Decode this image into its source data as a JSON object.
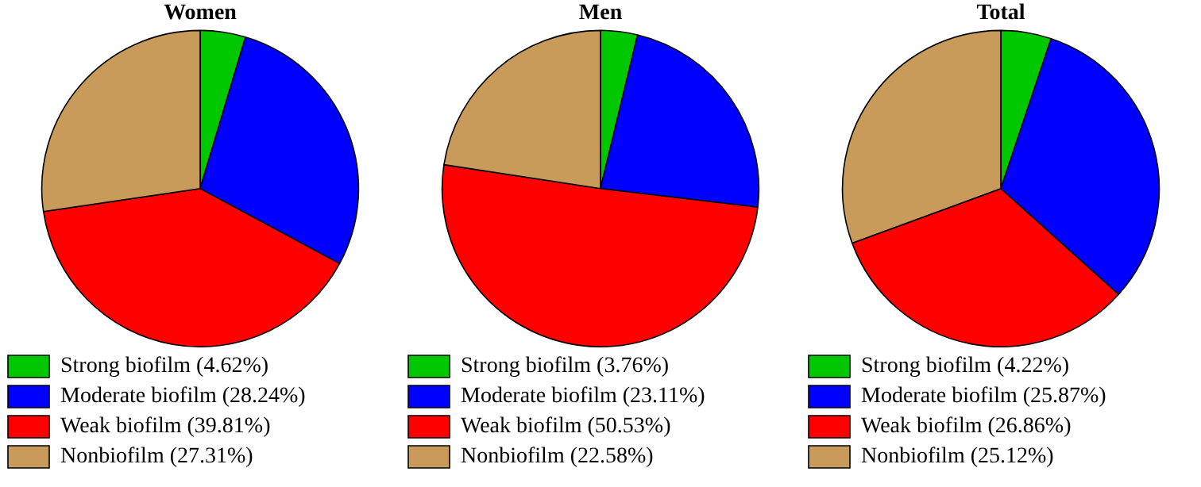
{
  "chart_data": [
    {
      "type": "pie",
      "title": "Women",
      "categories": [
        "Strong biofilm (4.62%)",
        "Moderate biofilm (28.24%)",
        "Weak biofilm (39.81%)",
        "Nonbiofilm (27.31%)"
      ],
      "values": [
        4.62,
        28.24,
        39.81,
        27.31
      ],
      "colors": [
        "#00c800",
        "#0000ff",
        "#ff0000",
        "#c89b5a"
      ],
      "legend": "bottom"
    },
    {
      "type": "pie",
      "title": "Men",
      "categories": [
        "Strong biofilm (3.76%)",
        "Moderate biofilm (23.11%)",
        "Weak biofilm (50.53%)",
        "Nonbiofilm (22.58%)"
      ],
      "values": [
        3.76,
        23.11,
        50.53,
        22.58
      ],
      "colors": [
        "#00c800",
        "#0000ff",
        "#ff0000",
        "#c89b5a"
      ],
      "legend": "bottom"
    },
    {
      "type": "pie",
      "title": "Total",
      "categories": [
        "Strong biofilm (4.22%)",
        "Moderate biofilm (25.87%)",
        "Weak biofilm (26.86%)",
        "Nonbiofilm (25.12%)"
      ],
      "values": [
        4.22,
        25.87,
        26.86,
        25.12
      ],
      "colors": [
        "#00c800",
        "#0000ff",
        "#ff0000",
        "#c89b5a"
      ],
      "legend": "bottom"
    }
  ]
}
